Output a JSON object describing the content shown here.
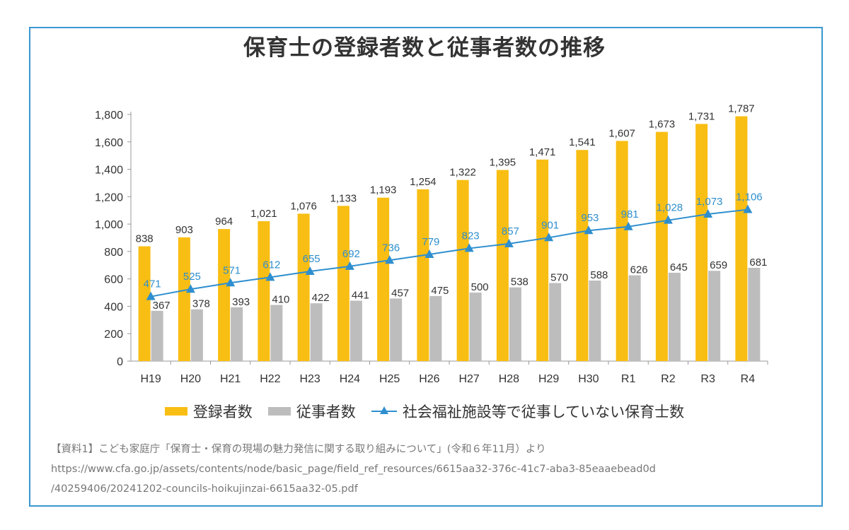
{
  "chart_data": {
    "type": "bar",
    "title": "保育士の登録者数と従事者数の推移",
    "categories": [
      "H19",
      "H20",
      "H21",
      "H22",
      "H23",
      "H24",
      "H25",
      "H26",
      "H27",
      "H28",
      "H29",
      "H30",
      "R1",
      "R2",
      "R3",
      "R4"
    ],
    "ylim": [
      0,
      1800
    ],
    "yticks": [
      0,
      200,
      400,
      600,
      800,
      1000,
      1200,
      1400,
      1600,
      1800
    ],
    "ytick_labels": [
      "0",
      "200",
      "400",
      "600",
      "800",
      "1,000",
      "1,200",
      "1,400",
      "1,600",
      "1,800"
    ],
    "grid": false,
    "legend_position": "bottom",
    "series": [
      {
        "name": "登録者数",
        "type": "bar",
        "color": "#f9be13",
        "values": [
          838,
          903,
          964,
          1021,
          1076,
          1133,
          1193,
          1254,
          1322,
          1395,
          1471,
          1541,
          1607,
          1673,
          1731,
          1787
        ],
        "labels": [
          "838",
          "903",
          "964",
          "1,021",
          "1,076",
          "1,133",
          "1,193",
          "1,254",
          "1,322",
          "1,395",
          "1,471",
          "1,541",
          "1,607",
          "1,673",
          "1,731",
          "1,787"
        ]
      },
      {
        "name": "従事者数",
        "type": "bar",
        "color": "#bdbdbd",
        "values": [
          367,
          378,
          393,
          410,
          422,
          441,
          457,
          475,
          500,
          538,
          570,
          588,
          626,
          645,
          659,
          681
        ],
        "labels": [
          "367",
          "378",
          "393",
          "410",
          "422",
          "441",
          "457",
          "475",
          "500",
          "538",
          "570",
          "588",
          "626",
          "645",
          "659",
          "681"
        ]
      },
      {
        "name": "社会福祉施設等で従事していない保育士数",
        "type": "line",
        "marker": "triangle",
        "color": "#2e8fcf",
        "values": [
          471,
          525,
          571,
          612,
          655,
          692,
          736,
          779,
          823,
          857,
          901,
          953,
          981,
          1028,
          1073,
          1106
        ],
        "labels": [
          "471",
          "525",
          "571",
          "612",
          "655",
          "692",
          "736",
          "779",
          "823",
          "857",
          "901",
          "953",
          "981",
          "1,028",
          "1,073",
          "1,106"
        ]
      }
    ]
  },
  "source": {
    "line1": "【資料1】こども家庭庁「保育士・保育の現場の魅力発信に関する取り組みについて」(令和６年11月）より",
    "line2": "https://www.cfa.go.jp/assets/contents/node/basic_page/field_ref_resources/6615aa32-376c-41c7-aba3-85eaaebead0d",
    "line3": "/40259406/20241202-councils-hoikujinzai-6615aa32-05.pdf"
  }
}
